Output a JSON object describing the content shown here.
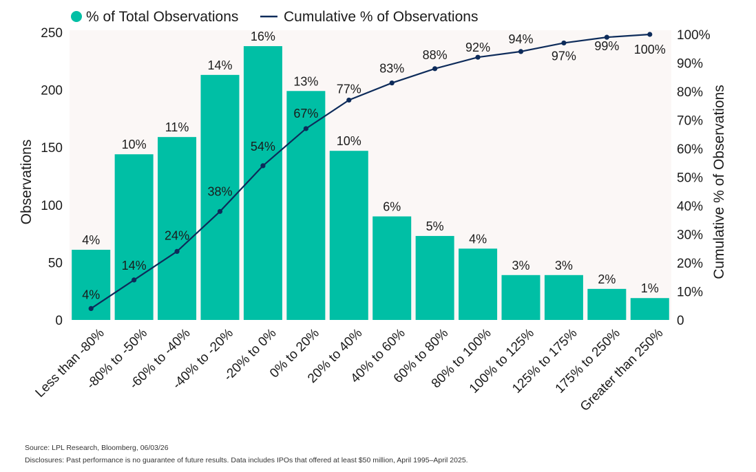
{
  "colors": {
    "bar": "#00BFA5",
    "line": "#0D2B5A",
    "plot_bg": "#FBF7F6"
  },
  "legend": {
    "bar_label": "% of Total Observations",
    "line_label": "Cumulative % of Observations"
  },
  "footnotes": {
    "source": "Source: LPL Research, Bloomberg, 06/03/26",
    "disclosure": "Disclosures: Past performance is no guarantee of future results. Data includes IPOs that offered at least $50 million, April 1995–April 2025."
  },
  "chart_data": {
    "type": "bar",
    "categories": [
      "Less than -80%",
      "-80% to -50%",
      "-60% to -40%",
      "-40% to -20%",
      "-20% to 0%",
      "0% to 20%",
      "20% to 40%",
      "40% to 60%",
      "60% to 80%",
      "80% to 100%",
      "100% to 125%",
      "125% to 175%",
      "175% to 250%",
      "Greater than 250%"
    ],
    "series": [
      {
        "name": "% of Total Observations",
        "type": "bar",
        "axis": "left",
        "values": [
          61,
          144,
          159,
          213,
          238,
          199,
          147,
          90,
          73,
          62,
          39,
          39,
          27,
          19
        ],
        "labels": [
          "4%",
          "10%",
          "11%",
          "14%",
          "16%",
          "13%",
          "10%",
          "6%",
          "5%",
          "4%",
          "3%",
          "3%",
          "2%",
          "1%"
        ]
      },
      {
        "name": "Cumulative % of Observations",
        "type": "line",
        "axis": "right",
        "values": [
          4,
          14,
          24,
          38,
          54,
          67,
          77,
          83,
          88,
          92,
          94,
          97,
          99,
          100
        ],
        "labels": [
          "4%",
          "14%",
          "24%",
          "38%",
          "54%",
          "67%",
          "77%",
          "83%",
          "88%",
          "92%",
          "94%",
          "97%",
          "99%",
          "100%"
        ]
      }
    ],
    "ylabel": "Observations",
    "y2label": "Cumulative % of Observations",
    "ylim": [
      0,
      250
    ],
    "y2lim": [
      0,
      100
    ],
    "yticks": [
      "0",
      "50",
      "100",
      "150",
      "200",
      "250"
    ],
    "y2ticks": [
      "0",
      "10%",
      "20%",
      "30%",
      "40%",
      "50%",
      "60%",
      "70%",
      "80%",
      "90%",
      "100%"
    ],
    "legend_position": "top-left",
    "grid": false
  }
}
